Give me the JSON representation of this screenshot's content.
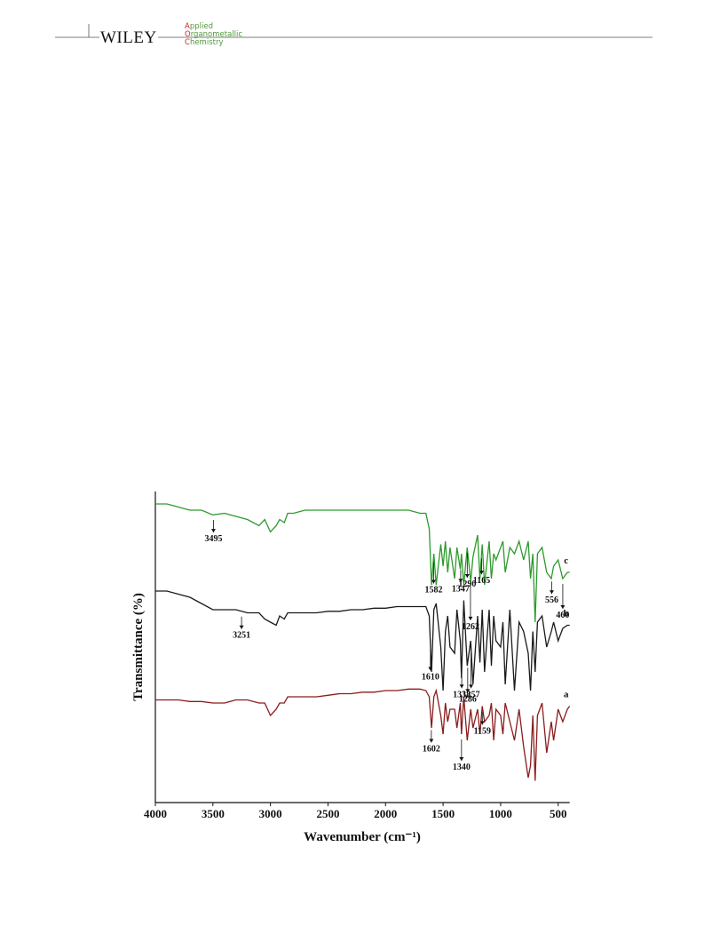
{
  "header": {
    "brand": "WILEY",
    "journal": [
      "Applied",
      "Organometallic",
      "Chemistry"
    ]
  },
  "chart_data": {
    "type": "line",
    "x_label": "Wavenumber (cm⁻¹)",
    "y_label": "Transmittance (%)",
    "x": [
      4000,
      3900,
      3800,
      3700,
      3600,
      3500,
      3400,
      3300,
      3200,
      3100,
      3050,
      3000,
      2950,
      2920,
      2880,
      2850,
      2800,
      2700,
      2600,
      2500,
      2400,
      2300,
      2200,
      2100,
      2000,
      1900,
      1800,
      1700,
      1650,
      1620,
      1600,
      1580,
      1560,
      1520,
      1500,
      1480,
      1460,
      1440,
      1400,
      1380,
      1350,
      1340,
      1320,
      1290,
      1260,
      1240,
      1200,
      1180,
      1160,
      1140,
      1100,
      1080,
      1060,
      1040,
      1000,
      980,
      960,
      920,
      880,
      840,
      800,
      760,
      740,
      720,
      700,
      680,
      640,
      600,
      560,
      540,
      500,
      460,
      420,
      400
    ],
    "xlim": [
      4000,
      400
    ],
    "xticks": [
      4000,
      3500,
      3000,
      2500,
      2000,
      1500,
      1000,
      500
    ],
    "ylim": [
      0,
      100
    ],
    "series": [
      {
        "name": "a",
        "color": "#8b1c1c",
        "values": [
          33,
          33,
          33,
          32.5,
          32.5,
          32,
          32,
          33,
          33,
          32,
          32,
          28,
          30,
          32,
          32,
          34,
          34,
          34,
          34,
          34.5,
          35,
          35,
          35.5,
          35.5,
          36,
          36,
          36.5,
          36.5,
          36,
          34,
          24,
          34,
          36,
          28,
          22,
          32,
          26,
          30,
          30,
          24,
          32,
          22,
          34,
          20,
          30,
          24,
          30,
          22,
          31,
          26,
          28,
          32,
          20,
          30,
          28,
          22,
          32,
          26,
          20,
          30,
          18,
          8,
          12,
          28,
          7,
          28,
          32,
          16,
          26,
          20,
          30,
          26,
          30,
          31
        ],
        "peaks": [
          1602,
          1340,
          1159
        ]
      },
      {
        "name": "b",
        "color": "#1a1a1a",
        "values": [
          68,
          68,
          67,
          66,
          64,
          62,
          62,
          62,
          61,
          61,
          59,
          58,
          57,
          60,
          59,
          61,
          61,
          61,
          61,
          61.5,
          61.5,
          62,
          62,
          62.5,
          62.5,
          63,
          63,
          63,
          63,
          60,
          42,
          62,
          64,
          50,
          36,
          55,
          60,
          50,
          48,
          62,
          52,
          40,
          65,
          44,
          52,
          38,
          60,
          45,
          62,
          42,
          62,
          44,
          60,
          52,
          50,
          58,
          38,
          62,
          36,
          58,
          55,
          48,
          36,
          55,
          42,
          58,
          60,
          50,
          55,
          58,
          52,
          56,
          57,
          57
        ],
        "peaks": [
          3251,
          1610,
          1338,
          1286,
          1257
        ]
      },
      {
        "name": "c",
        "color": "#2e9a2e",
        "values": [
          96,
          96,
          95,
          94,
          94,
          92.5,
          93,
          92,
          91,
          89,
          91,
          87,
          89,
          91,
          90,
          93,
          93,
          94,
          94,
          94,
          94,
          94,
          94,
          94,
          94,
          94,
          94,
          93,
          93,
          88,
          70,
          80,
          70,
          83,
          76,
          84,
          74,
          82,
          72,
          82,
          75,
          80,
          70,
          82,
          71,
          79,
          86,
          72,
          83,
          70,
          84,
          72,
          80,
          78,
          82,
          84,
          74,
          82,
          80,
          84,
          78,
          84,
          72,
          80,
          58,
          80,
          82,
          74,
          72,
          76,
          78,
          72,
          74,
          74
        ],
        "peaks": [
          3495,
          1582,
          1347,
          1290,
          1262,
          1165,
          556,
          460
        ]
      }
    ]
  }
}
